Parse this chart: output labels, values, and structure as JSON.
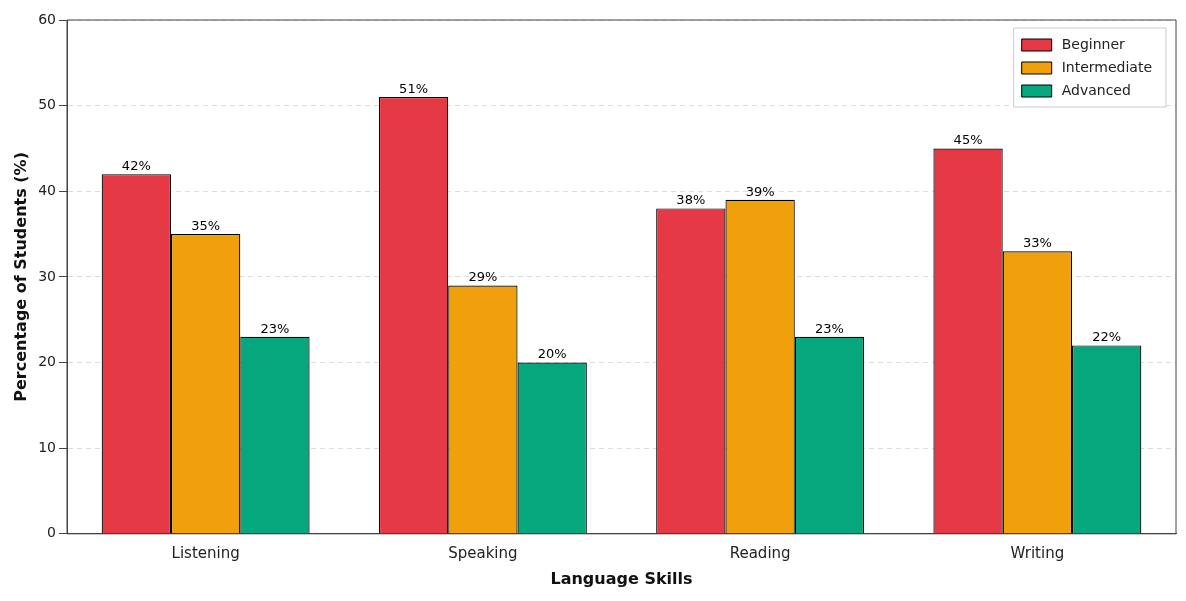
{
  "chart_data": {
    "type": "bar",
    "xlabel": "Language Skills",
    "ylabel": "Percentage of Students (%)",
    "categories": [
      "Listening",
      "Speaking",
      "Reading",
      "Writing"
    ],
    "series": [
      {
        "name": "Beginner",
        "color": "#e63946",
        "values": [
          42,
          51,
          38,
          45
        ],
        "value_labels": [
          "42%",
          "51%",
          "38%",
          "45%"
        ]
      },
      {
        "name": "Intermediate",
        "color": "#f0a00a",
        "values": [
          35,
          29,
          39,
          33
        ],
        "value_labels": [
          "35%",
          "29%",
          "39%",
          "33%"
        ]
      },
      {
        "name": "Advanced",
        "color": "#06a77d",
        "values": [
          23,
          20,
          23,
          22
        ],
        "value_labels": [
          "23%",
          "20%",
          "23%",
          "22%"
        ]
      }
    ],
    "ylim": [
      0,
      60
    ],
    "yticks": [
      0,
      10,
      20,
      30,
      40,
      50,
      60
    ],
    "grid": "y",
    "legend": "top right"
  }
}
